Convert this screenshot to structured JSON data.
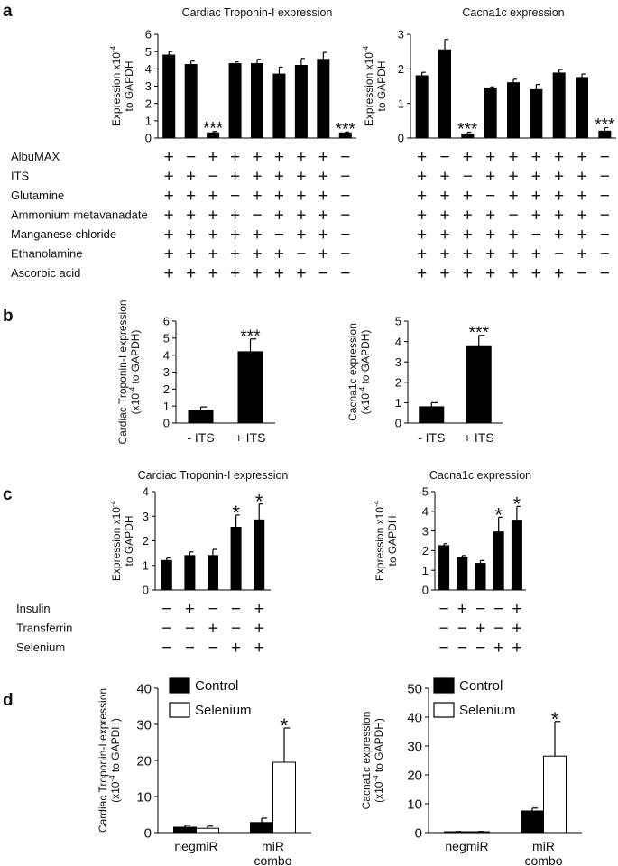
{
  "panel_labels": {
    "a": "a",
    "b": "b",
    "c": "c",
    "d": "d"
  },
  "chart_data": [
    {
      "id": "a-tnni",
      "panel": "a",
      "type": "bar",
      "title": "Cardiac Troponin-I expression",
      "ylabel_lines": [
        "Expression x10",
        "to GAPDH"
      ],
      "ylabel_sup": "-4",
      "ylim": [
        0,
        6
      ],
      "yticks": [
        0,
        1,
        2,
        3,
        4,
        5,
        6
      ],
      "values": [
        4.8,
        4.25,
        0.3,
        4.3,
        4.3,
        3.7,
        4.2,
        4.55,
        0.3
      ],
      "errors": [
        0.2,
        0.2,
        0.08,
        0.1,
        0.25,
        0.4,
        0.4,
        0.4,
        0.05
      ],
      "significance": [
        "",
        "",
        "***",
        "",
        "",
        "",
        "",
        "",
        "***"
      ],
      "condition_labels": [
        "AlbuMAX",
        "ITS",
        "Glutamine",
        "Ammonium metavanadate",
        "Manganese chloride",
        "Ethanolamine",
        "Ascorbic acid"
      ],
      "conditions": [
        [
          "+",
          "−",
          "+",
          "+",
          "+",
          "+",
          "+",
          "+",
          "−"
        ],
        [
          "+",
          "+",
          "−",
          "+",
          "+",
          "+",
          "+",
          "+",
          "−"
        ],
        [
          "+",
          "+",
          "+",
          "−",
          "+",
          "+",
          "+",
          "+",
          "−"
        ],
        [
          "+",
          "+",
          "+",
          "+",
          "−",
          "+",
          "+",
          "+",
          "−"
        ],
        [
          "+",
          "+",
          "+",
          "+",
          "+",
          "−",
          "+",
          "+",
          "−"
        ],
        [
          "+",
          "+",
          "+",
          "+",
          "+",
          "+",
          "−",
          "+",
          "−"
        ],
        [
          "+",
          "+",
          "+",
          "+",
          "+",
          "+",
          "+",
          "−",
          "−"
        ]
      ]
    },
    {
      "id": "a-cacna",
      "panel": "a",
      "type": "bar",
      "title": "Cacna1c expression",
      "ylabel_lines": [
        "Expression x10",
        "to GAPDH"
      ],
      "ylabel_sup": "-4",
      "ylim": [
        0,
        3
      ],
      "yticks": [
        0,
        1,
        2,
        3
      ],
      "values": [
        1.8,
        2.55,
        0.12,
        1.45,
        1.6,
        1.4,
        1.88,
        1.75,
        0.2
      ],
      "errors": [
        0.1,
        0.3,
        0.05,
        0.03,
        0.1,
        0.15,
        0.1,
        0.1,
        0.1
      ],
      "significance": [
        "",
        "",
        "***",
        "",
        "",
        "",
        "",
        "",
        "***"
      ],
      "conditions": [
        [
          "+",
          "−",
          "+",
          "+",
          "+",
          "+",
          "+",
          "+",
          "−"
        ],
        [
          "+",
          "+",
          "−",
          "+",
          "+",
          "+",
          "+",
          "+",
          "−"
        ],
        [
          "+",
          "+",
          "+",
          "−",
          "+",
          "+",
          "+",
          "+",
          "−"
        ],
        [
          "+",
          "+",
          "+",
          "+",
          "−",
          "+",
          "+",
          "+",
          "−"
        ],
        [
          "+",
          "+",
          "+",
          "+",
          "+",
          "−",
          "+",
          "+",
          "−"
        ],
        [
          "+",
          "+",
          "+",
          "+",
          "+",
          "+",
          "−",
          "+",
          "−"
        ],
        [
          "+",
          "+",
          "+",
          "+",
          "+",
          "+",
          "+",
          "−",
          "−"
        ]
      ]
    },
    {
      "id": "b-tnni",
      "panel": "b",
      "type": "bar",
      "title": "",
      "ylabel_lines": [
        "Cardiac Troponin-I expression",
        "(x10   to GAPDH)"
      ],
      "ylabel_sup": "-4",
      "ylim": [
        0,
        6
      ],
      "yticks": [
        0,
        1,
        2,
        3,
        4,
        5,
        6
      ],
      "categories": [
        "- ITS",
        "+ ITS"
      ],
      "values": [
        0.75,
        4.2
      ],
      "errors": [
        0.2,
        0.75
      ],
      "significance": [
        "",
        "***"
      ]
    },
    {
      "id": "b-cacna",
      "panel": "b",
      "type": "bar",
      "title": "",
      "ylabel_lines": [
        "Cacna1c expression",
        "(x10   to GAPDH)"
      ],
      "ylabel_sup": "-4",
      "ylim": [
        0,
        5
      ],
      "yticks": [
        0,
        1,
        2,
        3,
        4,
        5
      ],
      "categories": [
        "- ITS",
        "+ ITS"
      ],
      "values": [
        0.8,
        3.75
      ],
      "errors": [
        0.2,
        0.55
      ],
      "significance": [
        "",
        "***"
      ]
    },
    {
      "id": "c-tnni",
      "panel": "c",
      "type": "bar",
      "title": "Cardiac Troponin-I expression",
      "ylabel_lines": [
        "Expression x10",
        "to GAPDH"
      ],
      "ylabel_sup": "-4",
      "ylim": [
        0,
        4
      ],
      "yticks": [
        0,
        1,
        2,
        3,
        4
      ],
      "values": [
        1.2,
        1.4,
        1.4,
        2.55,
        2.85
      ],
      "errors": [
        0.1,
        0.15,
        0.25,
        0.5,
        0.65
      ],
      "significance": [
        "",
        "",
        "",
        "*",
        "*"
      ],
      "condition_labels": [
        "Insulin",
        "Transferrin",
        "Selenium"
      ],
      "conditions": [
        [
          "−",
          "+",
          "−",
          "−",
          "+"
        ],
        [
          "−",
          "−",
          "+",
          "−",
          "+"
        ],
        [
          "−",
          "−",
          "−",
          "+",
          "+"
        ]
      ]
    },
    {
      "id": "c-cacna",
      "panel": "c",
      "type": "bar",
      "title": "Cacna1c expression",
      "ylabel_lines": [
        "Expression x10",
        "to GAPDH"
      ],
      "ylabel_sup": "-4",
      "ylim": [
        0,
        5
      ],
      "yticks": [
        0,
        1,
        2,
        3,
        4,
        5
      ],
      "values": [
        2.25,
        1.65,
        1.35,
        2.95,
        3.55
      ],
      "errors": [
        0.1,
        0.1,
        0.15,
        0.75,
        0.7
      ],
      "significance": [
        "",
        "",
        "",
        "*",
        "*"
      ],
      "conditions": [
        [
          "−",
          "+",
          "−",
          "−",
          "+"
        ],
        [
          "−",
          "−",
          "+",
          "−",
          "+"
        ],
        [
          "−",
          "−",
          "−",
          "+",
          "+"
        ]
      ]
    },
    {
      "id": "d-tnni",
      "panel": "d",
      "type": "bar",
      "title": "",
      "ylabel_lines": [
        "Cardiac Troponin-I expression",
        "(x10   to GAPDH)"
      ],
      "ylabel_sup": "-4",
      "ylim": [
        0,
        40
      ],
      "yticks": [
        0,
        10,
        20,
        30,
        40
      ],
      "categories": [
        "negmiR",
        "miR\ncombo"
      ],
      "series": [
        {
          "name": "Control",
          "color": "#000000",
          "values": [
            1.5,
            2.8
          ],
          "errors": [
            0.5,
            1.2
          ]
        },
        {
          "name": "Selenium",
          "color": "#ffffff",
          "values": [
            1.2,
            19.5
          ],
          "errors": [
            0.6,
            9.5
          ]
        }
      ],
      "significance": [
        [
          "",
          ""
        ],
        [
          "",
          "*"
        ]
      ]
    },
    {
      "id": "d-cacna",
      "panel": "d",
      "type": "bar",
      "title": "",
      "ylabel_lines": [
        "Cacna1c expression",
        "(x10   to GAPDH)"
      ],
      "ylabel_sup": "-4",
      "ylim": [
        0,
        50
      ],
      "yticks": [
        0,
        10,
        20,
        30,
        40,
        50
      ],
      "categories": [
        "negmiR",
        "miR\ncombo"
      ],
      "series": [
        {
          "name": "Control",
          "color": "#000000",
          "values": [
            0.3,
            7.5
          ],
          "errors": [
            0.1,
            1.0
          ]
        },
        {
          "name": "Selenium",
          "color": "#ffffff",
          "values": [
            0.3,
            26.5
          ],
          "errors": [
            0.1,
            12.0
          ]
        }
      ],
      "significance": [
        [
          "",
          ""
        ],
        [
          "",
          "*"
        ]
      ]
    }
  ]
}
